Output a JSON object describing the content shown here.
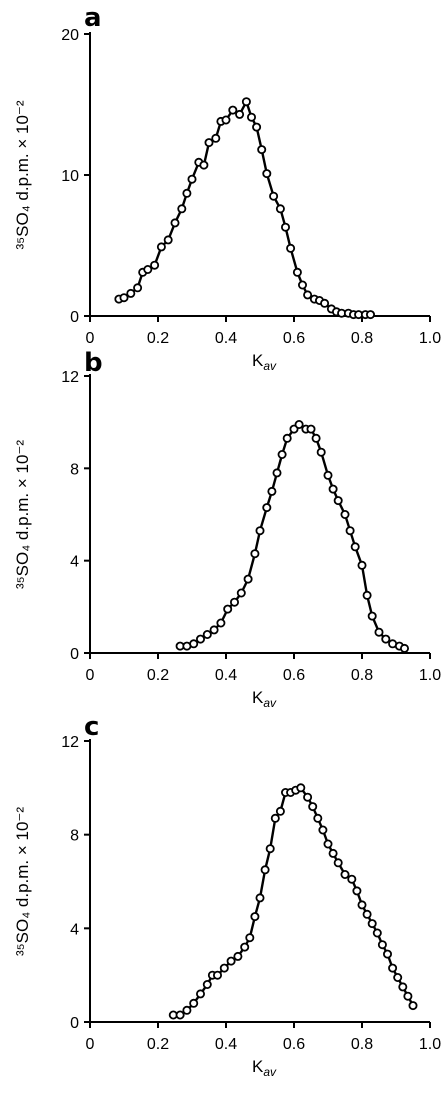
{
  "chart_data": [
    {
      "type": "line",
      "panel_label": "a",
      "xlabel": "K",
      "xlabel_sub": "av",
      "ylabel": "³⁵SO₄ d.p.m. × 10⁻²",
      "xlim": [
        0,
        1.0
      ],
      "ylim": [
        0,
        20
      ],
      "x_ticks": [
        0,
        0.2,
        0.4,
        0.6,
        0.8,
        1.0
      ],
      "x_tick_labels": [
        "0",
        "0.2",
        "0.4",
        "0.6",
        "0.8",
        "1.0"
      ],
      "y_ticks": [
        0,
        10,
        20
      ],
      "y_tick_labels": [
        "0",
        "10",
        "20"
      ],
      "marker": "open-circle",
      "grid": false,
      "x": [
        0.085,
        0.1,
        0.12,
        0.14,
        0.155,
        0.17,
        0.19,
        0.21,
        0.23,
        0.25,
        0.27,
        0.285,
        0.3,
        0.32,
        0.335,
        0.35,
        0.37,
        0.385,
        0.4,
        0.42,
        0.44,
        0.46,
        0.475,
        0.49,
        0.505,
        0.52,
        0.54,
        0.56,
        0.575,
        0.59,
        0.61,
        0.625,
        0.64,
        0.66,
        0.675,
        0.69,
        0.71,
        0.725,
        0.74,
        0.76,
        0.775,
        0.79,
        0.81,
        0.825
      ],
      "y": [
        1.2,
        1.3,
        1.6,
        2.0,
        3.1,
        3.3,
        3.6,
        4.9,
        5.4,
        6.6,
        7.6,
        8.7,
        9.7,
        10.9,
        10.7,
        12.3,
        12.6,
        13.8,
        13.9,
        14.6,
        14.3,
        15.2,
        14.1,
        13.4,
        11.8,
        10.1,
        8.5,
        7.6,
        6.3,
        4.8,
        3.1,
        2.2,
        1.5,
        1.2,
        1.1,
        0.9,
        0.5,
        0.3,
        0.2,
        0.2,
        0.1,
        0.1,
        0.1,
        0.1
      ]
    },
    {
      "type": "line",
      "panel_label": "b",
      "xlabel": "K",
      "xlabel_sub": "av",
      "ylabel": "³⁵SO₄ d.p.m. × 10⁻²",
      "xlim": [
        0,
        1.0
      ],
      "ylim": [
        0,
        12
      ],
      "x_ticks": [
        0,
        0.2,
        0.4,
        0.6,
        0.8,
        1.0
      ],
      "x_tick_labels": [
        "0",
        "0.2",
        "0.4",
        "0.6",
        "0.8",
        "1.0"
      ],
      "y_ticks": [
        0,
        4,
        8,
        12
      ],
      "y_tick_labels": [
        "0",
        "4",
        "8",
        "12"
      ],
      "marker": "open-circle",
      "grid": false,
      "x": [
        0.265,
        0.285,
        0.305,
        0.325,
        0.345,
        0.365,
        0.385,
        0.405,
        0.425,
        0.445,
        0.465,
        0.485,
        0.5,
        0.52,
        0.535,
        0.55,
        0.565,
        0.58,
        0.6,
        0.615,
        0.635,
        0.65,
        0.665,
        0.68,
        0.7,
        0.715,
        0.73,
        0.75,
        0.765,
        0.78,
        0.8,
        0.815,
        0.83,
        0.85,
        0.87,
        0.89,
        0.91,
        0.925
      ],
      "y": [
        0.3,
        0.3,
        0.4,
        0.6,
        0.8,
        1.0,
        1.3,
        1.9,
        2.2,
        2.6,
        3.2,
        4.3,
        5.3,
        6.3,
        7.0,
        7.8,
        8.6,
        9.3,
        9.7,
        9.9,
        9.7,
        9.7,
        9.3,
        8.7,
        7.7,
        7.1,
        6.6,
        6.0,
        5.3,
        4.6,
        3.8,
        2.5,
        1.6,
        0.9,
        0.6,
        0.4,
        0.3,
        0.2
      ]
    },
    {
      "type": "line",
      "panel_label": "c",
      "xlabel": "K",
      "xlabel_sub": "av",
      "ylabel": "³⁵SO₄ d.p.m. × 10⁻²",
      "xlim": [
        0,
        1.0
      ],
      "ylim": [
        0,
        12
      ],
      "x_ticks": [
        0,
        0.2,
        0.4,
        0.6,
        0.8,
        1.0
      ],
      "x_tick_labels": [
        "0",
        "0.2",
        "0.4",
        "0.6",
        "0.8",
        "1.0"
      ],
      "y_ticks": [
        0,
        4,
        8,
        12
      ],
      "y_tick_labels": [
        "0",
        "4",
        "8",
        "12"
      ],
      "marker": "open-circle",
      "grid": false,
      "x": [
        0.245,
        0.265,
        0.285,
        0.305,
        0.325,
        0.345,
        0.36,
        0.375,
        0.395,
        0.415,
        0.435,
        0.455,
        0.47,
        0.485,
        0.5,
        0.515,
        0.53,
        0.545,
        0.56,
        0.575,
        0.59,
        0.605,
        0.62,
        0.64,
        0.655,
        0.67,
        0.685,
        0.7,
        0.715,
        0.73,
        0.75,
        0.77,
        0.785,
        0.8,
        0.815,
        0.83,
        0.845,
        0.86,
        0.875,
        0.89,
        0.905,
        0.92,
        0.935,
        0.95
      ],
      "y": [
        0.3,
        0.3,
        0.5,
        0.8,
        1.2,
        1.6,
        2.0,
        2.0,
        2.3,
        2.6,
        2.8,
        3.2,
        3.6,
        4.5,
        5.3,
        6.5,
        7.4,
        8.7,
        9.0,
        9.8,
        9.8,
        9.9,
        10.0,
        9.6,
        9.2,
        8.7,
        8.2,
        7.6,
        7.2,
        6.8,
        6.3,
        6.1,
        5.6,
        5.0,
        4.6,
        4.2,
        3.8,
        3.3,
        2.9,
        2.3,
        1.9,
        1.5,
        1.1,
        0.7
      ]
    }
  ]
}
